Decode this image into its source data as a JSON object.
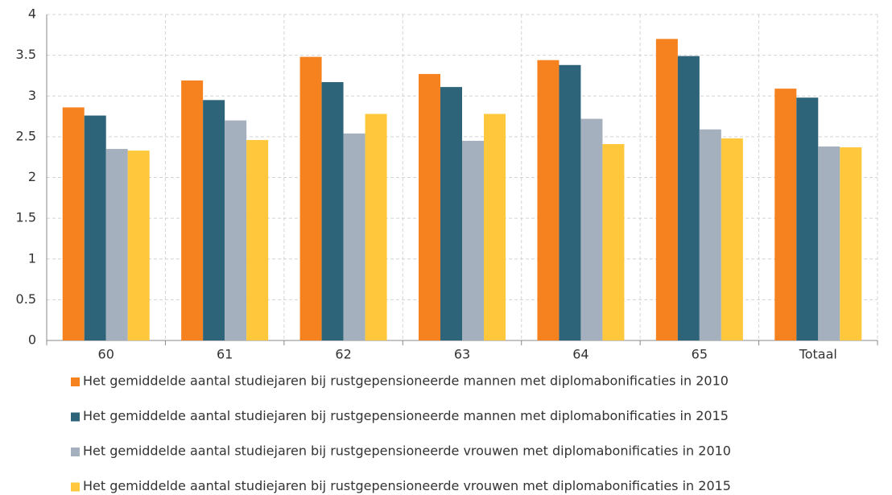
{
  "chart_data": {
    "type": "bar",
    "categories": [
      "60",
      "61",
      "62",
      "63",
      "64",
      "65",
      "Totaal"
    ],
    "series": [
      {
        "name": "Het gemiddelde aantal studiejaren bij rustgepensioneerde mannen met diplomabonificaties in 2010",
        "color": "#f5821f",
        "values": [
          2.86,
          3.19,
          3.48,
          3.27,
          3.44,
          3.7,
          3.09
        ]
      },
      {
        "name": "Het gemiddelde aantal studiejaren bij rustgepensioneerde mannen met diplomabonificaties in 2015",
        "color": "#2e6479",
        "values": [
          2.76,
          2.95,
          3.17,
          3.11,
          3.38,
          3.49,
          2.98
        ]
      },
      {
        "name": "Het gemiddelde aantal studiejaren bij rustgepensioneerde vrouwen met diplomabonificaties in 2010",
        "color": "#a5b0be",
        "values": [
          2.35,
          2.7,
          2.54,
          2.45,
          2.72,
          2.59,
          2.38
        ]
      },
      {
        "name": "Het gemiddelde aantal studiejaren bij rustgepensioneerde vrouwen met diplomabonificaties in 2015",
        "color": "#ffc73b",
        "values": [
          2.33,
          2.46,
          2.78,
          2.78,
          2.41,
          2.48,
          2.37
        ]
      }
    ],
    "ylim": [
      0,
      4
    ],
    "yticks": [
      0,
      0.5,
      1,
      1.5,
      2,
      2.5,
      3,
      3.5,
      4
    ],
    "grid": true,
    "legend": "bottom"
  }
}
